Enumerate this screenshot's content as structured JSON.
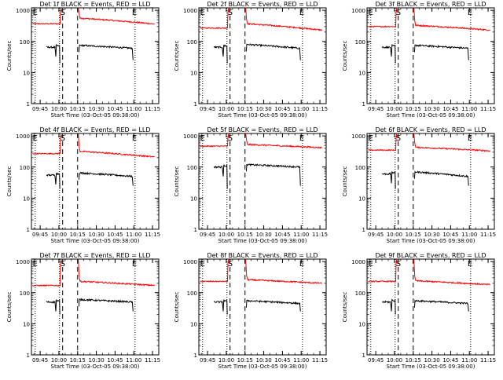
{
  "colors": {
    "events": "#000000",
    "lld": "#ff0000",
    "axis": "#000000",
    "background": "#ffffff"
  },
  "shared": {
    "ylabel": "Counts/sec",
    "xlabel": "Start Time (03-Oct-05 09:38:00)",
    "xticks": [
      "09:45",
      "10:00",
      "10:15",
      "10:30",
      "10:45",
      "11:00",
      "11:15"
    ],
    "xtick_minutes": [
      7,
      22,
      37,
      52,
      67,
      82,
      97
    ],
    "yticks": [
      "1",
      "10",
      "100",
      "1000"
    ],
    "ytick_values": [
      1,
      10,
      100,
      1000
    ],
    "xlim_minutes": [
      0,
      102
    ],
    "ylim": [
      1,
      1200
    ],
    "yscale": "log",
    "marker_S": "S",
    "marker_E": "E"
  },
  "chart_data": [
    {
      "type": "line",
      "title": "Det 1f BLACK = Events, RED = LLD",
      "series": [
        {
          "name": "BLACK = Events",
          "color": "#000000",
          "pre": 65,
          "post": 75,
          "end": 60
        },
        {
          "name": "RED = LLD",
          "color": "#ff0000",
          "pre": 370,
          "post": 560,
          "end": 360
        }
      ]
    },
    {
      "type": "line",
      "title": "Det 2f BLACK = Events, RED = LLD",
      "series": [
        {
          "name": "BLACK = Events",
          "color": "#000000",
          "pre": 65,
          "post": 80,
          "end": 60
        },
        {
          "name": "RED = LLD",
          "color": "#ff0000",
          "pre": 270,
          "post": 370,
          "end": 230
        }
      ]
    },
    {
      "type": "line",
      "title": "Det 3f BLACK = Events, RED = LLD",
      "series": [
        {
          "name": "BLACK = Events",
          "color": "#000000",
          "pre": 65,
          "post": 75,
          "end": 60
        },
        {
          "name": "RED = LLD",
          "color": "#ff0000",
          "pre": 300,
          "post": 330,
          "end": 230
        }
      ]
    },
    {
      "type": "line",
      "title": "Det 4f BLACK = Events, RED = LLD",
      "series": [
        {
          "name": "BLACK = Events",
          "color": "#000000",
          "pre": 55,
          "post": 65,
          "end": 50
        },
        {
          "name": "RED = LLD",
          "color": "#ff0000",
          "pre": 270,
          "post": 320,
          "end": 210
        }
      ]
    },
    {
      "type": "line",
      "title": "Det 5f BLACK = Events, RED = LLD",
      "series": [
        {
          "name": "BLACK = Events",
          "color": "#000000",
          "pre": 100,
          "post": 120,
          "end": 100
        },
        {
          "name": "RED = LLD",
          "color": "#ff0000",
          "pre": 470,
          "post": 530,
          "end": 420
        }
      ]
    },
    {
      "type": "line",
      "title": "Det 6f BLACK = Events, RED = LLD",
      "series": [
        {
          "name": "BLACK = Events",
          "color": "#000000",
          "pre": 60,
          "post": 70,
          "end": 50
        },
        {
          "name": "RED = LLD",
          "color": "#ff0000",
          "pre": 350,
          "post": 430,
          "end": 330
        }
      ]
    },
    {
      "type": "line",
      "title": "Det 7f BLACK = Events, RED = LLD",
      "series": [
        {
          "name": "BLACK = Events",
          "color": "#000000",
          "pre": 50,
          "post": 60,
          "end": 50
        },
        {
          "name": "RED = LLD",
          "color": "#ff0000",
          "pre": 170,
          "post": 230,
          "end": 170
        }
      ]
    },
    {
      "type": "line",
      "title": "Det 8f BLACK = Events, RED = LLD",
      "series": [
        {
          "name": "BLACK = Events",
          "color": "#000000",
          "pre": 50,
          "post": 55,
          "end": 45
        },
        {
          "name": "RED = LLD",
          "color": "#ff0000",
          "pre": 230,
          "post": 260,
          "end": 200
        }
      ]
    },
    {
      "type": "line",
      "title": "Det 9f BLACK = Events, RED = LLD",
      "series": [
        {
          "name": "BLACK = Events",
          "color": "#000000",
          "pre": 50,
          "post": 55,
          "end": 45
        },
        {
          "name": "RED = LLD",
          "color": "#ff0000",
          "pre": 230,
          "post": 240,
          "end": 180
        }
      ]
    }
  ]
}
